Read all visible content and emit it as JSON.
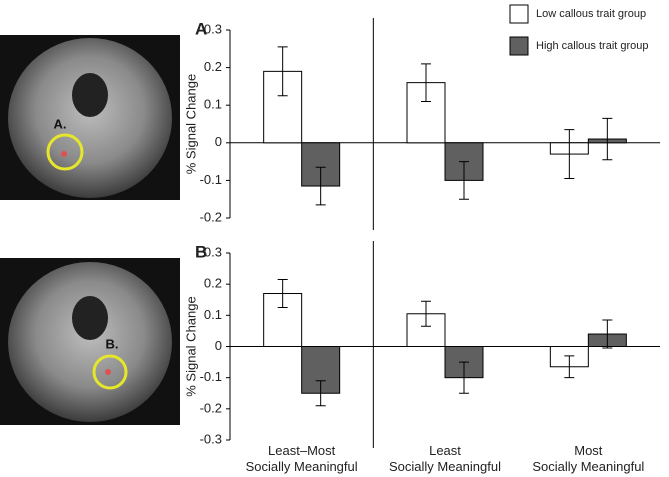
{
  "images": [
    {
      "label": "A."
    },
    {
      "label": "B."
    }
  ],
  "chart_data": [
    {
      "type": "bar",
      "label": "A",
      "ylabel": "% Signal Change",
      "ylim": [
        -0.2,
        0.3
      ],
      "yticks": [
        -0.2,
        -0.1,
        0,
        0.1,
        0.2,
        0.3
      ],
      "series": [
        {
          "name": "Low callous trait group",
          "color": "#ffffff",
          "values": [
            0.19,
            0.16,
            -0.03
          ],
          "errors": [
            0.065,
            0.05,
            0.065
          ]
        },
        {
          "name": "High callous trait group",
          "color": "#606060",
          "values": [
            -0.115,
            -0.1,
            0.01
          ],
          "errors": [
            0.05,
            0.05,
            0.055
          ]
        }
      ]
    },
    {
      "type": "bar",
      "label": "B",
      "ylabel": "% Signal Change",
      "categories": [
        "Least–Most\nSocially Meaningful",
        "Least\nSocially Meaningful",
        "Most\nSocially Meaningful"
      ],
      "ylim": [
        -0.3,
        0.3
      ],
      "yticks": [
        -0.3,
        -0.2,
        -0.1,
        0,
        0.1,
        0.2,
        0.3
      ],
      "series": [
        {
          "color": "#ffffff",
          "values": [
            0.17,
            0.105,
            -0.065
          ],
          "errors": [
            0.045,
            0.04,
            0.035
          ]
        },
        {
          "color": "#606060",
          "values": [
            -0.15,
            -0.1,
            0.04
          ],
          "errors": [
            0.04,
            0.05,
            0.045
          ]
        }
      ]
    }
  ]
}
